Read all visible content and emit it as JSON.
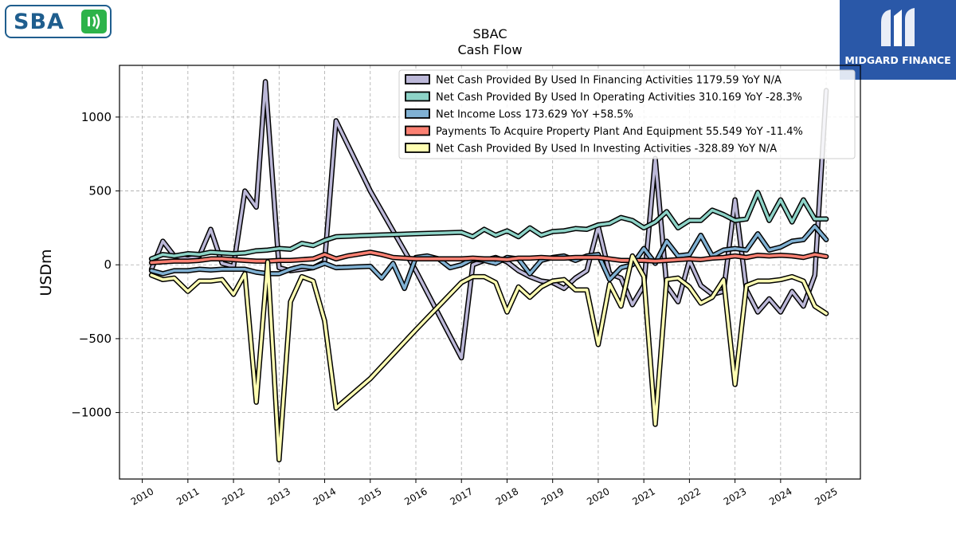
{
  "logos": {
    "left_text": "SBA",
    "right_text": "MIDGARD FINANCE"
  },
  "chart_data": {
    "type": "line",
    "title": "SBAC",
    "subtitle": "Cash Flow",
    "ylabel": "USDm",
    "xlabel": "",
    "xlim": [
      2009.5,
      2025.75
    ],
    "ylim": [
      -1450,
      1350
    ],
    "yticks": [
      -1000,
      -500,
      0,
      500,
      1000
    ],
    "ytick_labels": [
      "−1000",
      "−500",
      "0",
      "500",
      "1000"
    ],
    "xticks": [
      2010,
      2011,
      2012,
      2013,
      2014,
      2015,
      2016,
      2017,
      2018,
      2019,
      2020,
      2021,
      2022,
      2023,
      2024,
      2025
    ],
    "grid": true,
    "legend_position": "top-right",
    "series": [
      {
        "name": "Net Cash Provided By Used In Financing Activities  1179.59 YoY N/A",
        "color": "#bcb8d8",
        "points": [
          [
            2010.2,
            -30
          ],
          [
            2010.45,
            160
          ],
          [
            2010.7,
            60
          ],
          [
            2011.0,
            40
          ],
          [
            2011.25,
            60
          ],
          [
            2011.5,
            240
          ],
          [
            2011.75,
            10
          ],
          [
            2012.0,
            -10
          ],
          [
            2012.25,
            500
          ],
          [
            2012.5,
            390
          ],
          [
            2012.7,
            1240
          ],
          [
            2013.0,
            -20
          ],
          [
            2013.25,
            -40
          ],
          [
            2013.5,
            -30
          ],
          [
            2013.75,
            -20
          ],
          [
            2014.0,
            20
          ],
          [
            2014.25,
            975
          ],
          [
            2015.0,
            500
          ],
          [
            2016.0,
            -40
          ],
          [
            2017.0,
            -630
          ],
          [
            2017.25,
            0
          ],
          [
            2017.5,
            30
          ],
          [
            2017.75,
            50
          ],
          [
            2018.0,
            20
          ],
          [
            2018.25,
            -40
          ],
          [
            2018.5,
            -80
          ],
          [
            2018.75,
            -110
          ],
          [
            2019.0,
            -120
          ],
          [
            2019.25,
            -160
          ],
          [
            2019.5,
            -90
          ],
          [
            2019.75,
            -40
          ],
          [
            2020.0,
            260
          ],
          [
            2020.25,
            -60
          ],
          [
            2020.5,
            -90
          ],
          [
            2020.75,
            -270
          ],
          [
            2021.0,
            -140
          ],
          [
            2021.25,
            720
          ],
          [
            2021.5,
            -140
          ],
          [
            2021.75,
            -250
          ],
          [
            2022.0,
            30
          ],
          [
            2022.25,
            -140
          ],
          [
            2022.5,
            -200
          ],
          [
            2022.75,
            -180
          ],
          [
            2023.0,
            440
          ],
          [
            2023.25,
            -170
          ],
          [
            2023.5,
            -320
          ],
          [
            2023.75,
            -230
          ],
          [
            2024.0,
            -320
          ],
          [
            2024.25,
            -180
          ],
          [
            2024.5,
            -280
          ],
          [
            2024.75,
            -70
          ],
          [
            2025.0,
            1180
          ]
        ]
      },
      {
        "name": "Net Cash Provided By Used In Operating Activities  310.169 YoY -28.3%",
        "color": "#8dd3c7",
        "points": [
          [
            2010.2,
            40
          ],
          [
            2010.45,
            70
          ],
          [
            2010.7,
            60
          ],
          [
            2011.0,
            75
          ],
          [
            2011.25,
            70
          ],
          [
            2011.5,
            85
          ],
          [
            2011.75,
            80
          ],
          [
            2012.0,
            75
          ],
          [
            2012.25,
            80
          ],
          [
            2012.5,
            95
          ],
          [
            2012.75,
            100
          ],
          [
            2013.0,
            110
          ],
          [
            2013.25,
            105
          ],
          [
            2013.5,
            145
          ],
          [
            2013.75,
            130
          ],
          [
            2014.0,
            165
          ],
          [
            2014.25,
            190
          ],
          [
            2015.0,
            200
          ],
          [
            2016.0,
            210
          ],
          [
            2017.0,
            220
          ],
          [
            2017.25,
            190
          ],
          [
            2017.5,
            240
          ],
          [
            2017.75,
            200
          ],
          [
            2018.0,
            230
          ],
          [
            2018.25,
            190
          ],
          [
            2018.5,
            250
          ],
          [
            2018.75,
            200
          ],
          [
            2019.0,
            225
          ],
          [
            2019.25,
            230
          ],
          [
            2019.5,
            245
          ],
          [
            2019.75,
            240
          ],
          [
            2020.0,
            270
          ],
          [
            2020.25,
            280
          ],
          [
            2020.5,
            320
          ],
          [
            2020.75,
            300
          ],
          [
            2021.0,
            250
          ],
          [
            2021.25,
            290
          ],
          [
            2021.5,
            360
          ],
          [
            2021.75,
            250
          ],
          [
            2022.0,
            300
          ],
          [
            2022.25,
            300
          ],
          [
            2022.5,
            370
          ],
          [
            2022.75,
            340
          ],
          [
            2023.0,
            300
          ],
          [
            2023.25,
            310
          ],
          [
            2023.5,
            490
          ],
          [
            2023.75,
            300
          ],
          [
            2024.0,
            440
          ],
          [
            2024.25,
            290
          ],
          [
            2024.5,
            440
          ],
          [
            2024.75,
            310
          ],
          [
            2025.0,
            310
          ]
        ]
      },
      {
        "name": "Net Income Loss  173.629 YoY +58.5%",
        "color": "#80b1d3",
        "points": [
          [
            2010.2,
            -40
          ],
          [
            2010.45,
            -60
          ],
          [
            2010.7,
            -40
          ],
          [
            2011.0,
            -40
          ],
          [
            2011.25,
            -30
          ],
          [
            2011.5,
            -35
          ],
          [
            2011.75,
            -30
          ],
          [
            2012.0,
            -30
          ],
          [
            2012.25,
            -30
          ],
          [
            2012.5,
            -50
          ],
          [
            2012.75,
            -60
          ],
          [
            2013.0,
            -60
          ],
          [
            2013.25,
            -30
          ],
          [
            2013.5,
            -10
          ],
          [
            2013.75,
            -20
          ],
          [
            2014.0,
            10
          ],
          [
            2014.25,
            -20
          ],
          [
            2015.0,
            -10
          ],
          [
            2015.25,
            -90
          ],
          [
            2015.5,
            10
          ],
          [
            2015.75,
            -160
          ],
          [
            2016.0,
            50
          ],
          [
            2016.25,
            60
          ],
          [
            2016.5,
            40
          ],
          [
            2016.75,
            -20
          ],
          [
            2017.0,
            0
          ],
          [
            2017.25,
            40
          ],
          [
            2017.5,
            30
          ],
          [
            2017.75,
            10
          ],
          [
            2018.0,
            50
          ],
          [
            2018.25,
            40
          ],
          [
            2018.5,
            -60
          ],
          [
            2018.75,
            30
          ],
          [
            2019.0,
            50
          ],
          [
            2019.25,
            60
          ],
          [
            2019.5,
            30
          ],
          [
            2019.75,
            60
          ],
          [
            2020.0,
            70
          ],
          [
            2020.25,
            -100
          ],
          [
            2020.5,
            -20
          ],
          [
            2020.75,
            0
          ],
          [
            2021.0,
            110
          ],
          [
            2021.25,
            10
          ],
          [
            2021.5,
            160
          ],
          [
            2021.75,
            60
          ],
          [
            2022.0,
            70
          ],
          [
            2022.25,
            200
          ],
          [
            2022.5,
            60
          ],
          [
            2022.75,
            100
          ],
          [
            2023.0,
            110
          ],
          [
            2023.25,
            100
          ],
          [
            2023.5,
            210
          ],
          [
            2023.75,
            100
          ],
          [
            2024.0,
            120
          ],
          [
            2024.25,
            160
          ],
          [
            2024.5,
            170
          ],
          [
            2024.75,
            260
          ],
          [
            2025.0,
            170
          ]
        ]
      },
      {
        "name": "Payments To Acquire Property Plant And Equipment  55.549 YoY -11.4%",
        "color": "#fb8072",
        "points": [
          [
            2010.2,
            15
          ],
          [
            2010.45,
            20
          ],
          [
            2010.7,
            25
          ],
          [
            2011.0,
            25
          ],
          [
            2011.25,
            30
          ],
          [
            2011.5,
            40
          ],
          [
            2011.75,
            40
          ],
          [
            2012.0,
            35
          ],
          [
            2012.25,
            30
          ],
          [
            2012.5,
            25
          ],
          [
            2012.75,
            25
          ],
          [
            2013.0,
            30
          ],
          [
            2013.25,
            30
          ],
          [
            2013.5,
            35
          ],
          [
            2013.75,
            40
          ],
          [
            2014.0,
            70
          ],
          [
            2014.25,
            40
          ],
          [
            2014.5,
            60
          ],
          [
            2015.0,
            85
          ],
          [
            2015.25,
            70
          ],
          [
            2015.5,
            50
          ],
          [
            2016.0,
            40
          ],
          [
            2017.0,
            40
          ],
          [
            2017.25,
            45
          ],
          [
            2017.5,
            40
          ],
          [
            2017.75,
            40
          ],
          [
            2018.0,
            35
          ],
          [
            2018.25,
            45
          ],
          [
            2018.5,
            45
          ],
          [
            2018.75,
            50
          ],
          [
            2019.0,
            45
          ],
          [
            2019.25,
            45
          ],
          [
            2019.5,
            50
          ],
          [
            2019.75,
            50
          ],
          [
            2020.0,
            50
          ],
          [
            2020.25,
            40
          ],
          [
            2020.5,
            30
          ],
          [
            2020.75,
            30
          ],
          [
            2021.0,
            30
          ],
          [
            2021.25,
            25
          ],
          [
            2021.5,
            30
          ],
          [
            2021.75,
            35
          ],
          [
            2022.0,
            40
          ],
          [
            2022.25,
            35
          ],
          [
            2022.5,
            45
          ],
          [
            2022.75,
            50
          ],
          [
            2023.0,
            60
          ],
          [
            2023.25,
            50
          ],
          [
            2023.5,
            65
          ],
          [
            2023.75,
            60
          ],
          [
            2024.0,
            65
          ],
          [
            2024.25,
            60
          ],
          [
            2024.5,
            50
          ],
          [
            2024.75,
            70
          ],
          [
            2025.0,
            56
          ]
        ]
      },
      {
        "name": "Net Cash Provided By Used In Investing Activities  -328.89 YoY N/A",
        "color": "#ffffb3",
        "points": [
          [
            2010.2,
            -70
          ],
          [
            2010.45,
            -100
          ],
          [
            2010.7,
            -90
          ],
          [
            2011.0,
            -180
          ],
          [
            2011.25,
            -110
          ],
          [
            2011.5,
            -110
          ],
          [
            2011.75,
            -100
          ],
          [
            2012.0,
            -200
          ],
          [
            2012.25,
            -60
          ],
          [
            2012.5,
            -930
          ],
          [
            2012.75,
            20
          ],
          [
            2013.0,
            -1320
          ],
          [
            2013.25,
            -250
          ],
          [
            2013.5,
            -80
          ],
          [
            2013.75,
            -110
          ],
          [
            2014.0,
            -380
          ],
          [
            2014.25,
            -970
          ],
          [
            2015.0,
            -770
          ],
          [
            2016.0,
            -440
          ],
          [
            2017.0,
            -120
          ],
          [
            2017.25,
            -80
          ],
          [
            2017.5,
            -80
          ],
          [
            2017.75,
            -120
          ],
          [
            2018.0,
            -320
          ],
          [
            2018.25,
            -150
          ],
          [
            2018.5,
            -220
          ],
          [
            2018.75,
            -150
          ],
          [
            2019.0,
            -110
          ],
          [
            2019.25,
            -100
          ],
          [
            2019.5,
            -170
          ],
          [
            2019.75,
            -170
          ],
          [
            2020.0,
            -540
          ],
          [
            2020.25,
            -130
          ],
          [
            2020.5,
            -280
          ],
          [
            2020.75,
            60
          ],
          [
            2021.0,
            -80
          ],
          [
            2021.25,
            -1080
          ],
          [
            2021.5,
            -100
          ],
          [
            2021.75,
            -90
          ],
          [
            2022.0,
            -150
          ],
          [
            2022.25,
            -260
          ],
          [
            2022.5,
            -220
          ],
          [
            2022.75,
            -100
          ],
          [
            2023.0,
            -810
          ],
          [
            2023.25,
            -140
          ],
          [
            2023.5,
            -110
          ],
          [
            2023.75,
            -110
          ],
          [
            2024.0,
            -100
          ],
          [
            2024.25,
            -80
          ],
          [
            2024.5,
            -110
          ],
          [
            2024.75,
            -280
          ],
          [
            2025.0,
            -330
          ]
        ]
      }
    ]
  }
}
